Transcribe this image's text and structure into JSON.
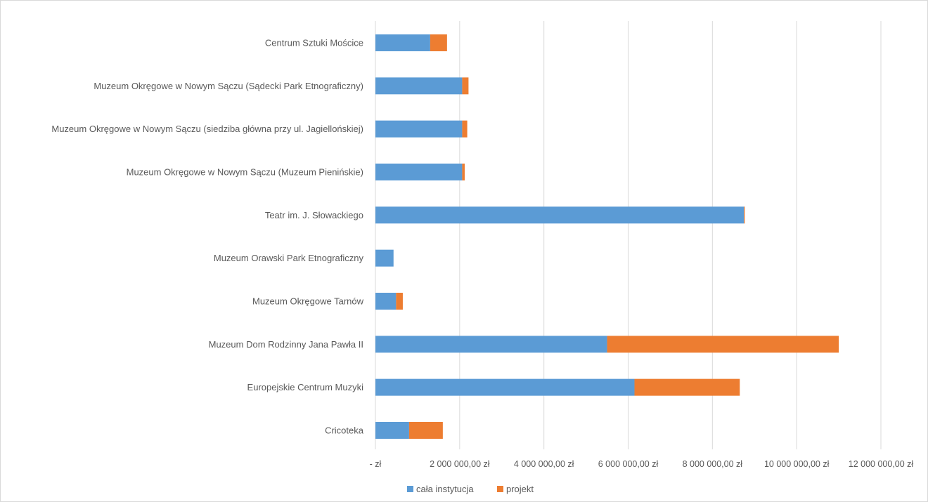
{
  "chart_data": {
    "type": "bar",
    "orientation": "horizontal",
    "stacked": true,
    "title": "",
    "xlabel": "",
    "ylabel": "",
    "xlim": [
      0,
      12000000
    ],
    "grid": true,
    "legend": "bottom",
    "categories": [
      "Centrum Sztuki Mościce",
      "Muzeum Okręgowe w Nowym Sączu (Sądecki Park Etnograficzny)",
      "Muzeum Okręgowe w Nowym Sączu (siedziba główna przy ul. Jagiellońskiej)",
      "Muzeum Okręgowe w Nowym Sączu (Muzeum Pienińskie)",
      "Teatr im. J. Słowackiego",
      "Muzeum Orawski Park Etnograficzny",
      "Muzeum Okręgowe Tarnów",
      "Muzeum Dom Rodzinny Jana Pawła II",
      "Europejskie Centrum Muzyki",
      "Cricoteka"
    ],
    "series": [
      {
        "name": "cała instytucja",
        "color": "#5b9bd5",
        "values": [
          1300000,
          2060000,
          2060000,
          2060000,
          8750000,
          430000,
          490000,
          5500000,
          6150000,
          800000
        ]
      },
      {
        "name": "projekt",
        "color": "#ed7d31",
        "values": [
          400000,
          150000,
          120000,
          60000,
          20000,
          0,
          160000,
          5500000,
          2500000,
          800000
        ]
      }
    ],
    "tick_labels": [
      "-   zł",
      "2 000 000,00 zł",
      "4 000 000,00 zł",
      "6 000 000,00 zł",
      "8 000 000,00 zł",
      "10 000 000,00 zł",
      "12 000 000,00 zł"
    ],
    "tick_values": [
      0,
      2000000,
      4000000,
      6000000,
      8000000,
      10000000,
      12000000
    ]
  }
}
